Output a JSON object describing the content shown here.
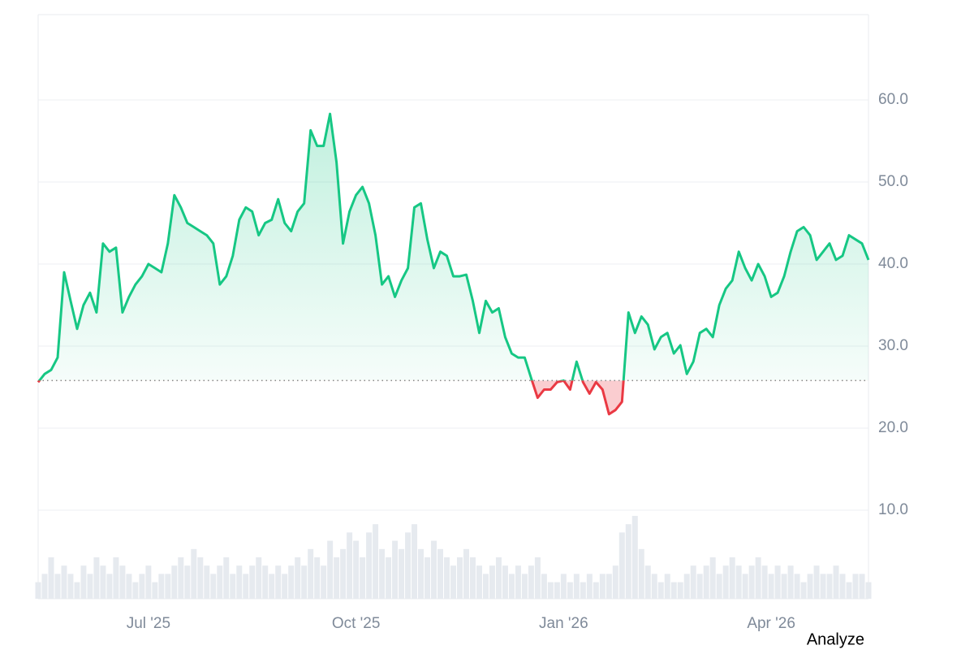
{
  "chart_data": {
    "type": "baseline",
    "categories": [
      null,
      null,
      null,
      null,
      null,
      null,
      null,
      null,
      null,
      null,
      null,
      null,
      null,
      null,
      null,
      null,
      null,
      "Jul '25",
      null,
      null,
      null,
      null,
      null,
      null,
      null,
      null,
      null,
      null,
      null,
      null,
      null,
      null,
      null,
      null,
      null,
      null,
      null,
      null,
      null,
      null,
      null,
      null,
      null,
      null,
      null,
      null,
      null,
      null,
      null,
      "Oct '25",
      null,
      null,
      null,
      null,
      null,
      null,
      null,
      null,
      null,
      null,
      null,
      null,
      null,
      null,
      null,
      null,
      null,
      null,
      null,
      null,
      null,
      null,
      null,
      null,
      null,
      null,
      null,
      null,
      null,
      null,
      null,
      "Jan '26",
      null,
      null,
      null,
      null,
      null,
      null,
      null,
      null,
      null,
      null,
      null,
      null,
      null,
      null,
      null,
      null,
      null,
      null,
      null,
      null,
      null,
      null,
      null,
      null,
      null,
      null,
      null,
      null,
      null,
      null,
      null,
      "Apr '26",
      null,
      null,
      null,
      null,
      null,
      null,
      null,
      null,
      null,
      null,
      null,
      null,
      null,
      null,
      null
    ],
    "values": [
      25.6,
      26.6,
      27.1,
      28.6,
      39.0,
      35.5,
      32.1,
      35.0,
      36.5,
      34.1,
      42.5,
      41.5,
      42.0,
      34.1,
      36.0,
      37.5,
      38.5,
      40.0,
      39.5,
      39.0,
      42.5,
      48.4,
      46.9,
      45.0,
      44.5,
      44.0,
      43.5,
      42.5,
      37.5,
      38.5,
      41.0,
      45.4,
      46.9,
      46.4,
      43.5,
      45.0,
      45.4,
      47.9,
      45.0,
      44.0,
      46.4,
      47.4,
      56.3,
      54.4,
      54.4,
      58.3,
      52.4,
      42.5,
      46.4,
      48.4,
      49.4,
      47.4,
      43.5,
      37.5,
      38.5,
      36.0,
      38.0,
      39.5,
      46.9,
      47.4,
      43.0,
      39.5,
      41.5,
      41.0,
      38.5,
      38.5,
      38.7,
      35.5,
      31.6,
      35.5,
      34.1,
      34.6,
      31.1,
      29.1,
      28.6,
      28.6,
      26.1,
      23.7,
      24.7,
      24.7,
      25.6,
      25.8,
      24.7,
      28.1,
      25.6,
      24.2,
      25.6,
      24.7,
      21.7,
      22.2,
      23.2,
      34.1,
      31.6,
      33.6,
      32.6,
      29.6,
      31.1,
      31.6,
      29.1,
      30.1,
      26.6,
      28.1,
      31.6,
      32.1,
      31.1,
      35.0,
      37.0,
      38.0,
      41.5,
      39.5,
      38.0,
      40.0,
      38.5,
      36.0,
      36.5,
      38.5,
      41.5,
      44.0,
      44.5,
      43.5,
      40.5,
      41.5,
      42.5,
      40.5,
      41.0,
      43.5,
      43.0,
      42.5,
      40.5
    ],
    "volume": [
      2,
      3,
      5,
      3,
      4,
      3,
      2,
      4,
      3,
      5,
      4,
      3,
      5,
      4,
      3,
      2,
      3,
      4,
      2,
      3,
      3,
      4,
      5,
      4,
      6,
      5,
      4,
      3,
      4,
      5,
      3,
      4,
      3,
      4,
      5,
      4,
      3,
      4,
      3,
      4,
      5,
      4,
      6,
      5,
      4,
      7,
      5,
      6,
      8,
      7,
      5,
      8,
      9,
      6,
      5,
      7,
      6,
      8,
      9,
      6,
      5,
      7,
      6,
      5,
      4,
      5,
      6,
      5,
      4,
      3,
      4,
      5,
      4,
      3,
      4,
      3,
      4,
      5,
      3,
      2,
      2,
      3,
      2,
      3,
      2,
      3,
      2,
      3,
      3,
      4,
      8,
      9,
      10,
      6,
      4,
      3,
      2,
      3,
      2,
      2,
      3,
      4,
      3,
      4,
      5,
      3,
      4,
      5,
      4,
      3,
      4,
      5,
      4,
      3,
      4,
      3,
      4,
      3,
      2,
      3,
      4,
      3,
      3,
      4,
      3,
      2,
      3,
      3,
      2
    ],
    "baseline": 25.8,
    "up_color": "#16c784",
    "down_color": "#ea3943",
    "volume_color": "#e6eaef",
    "ylim": [
      -0.8,
      70.4
    ],
    "yticks": [
      {
        "value": 10,
        "label": "10.0"
      },
      {
        "value": 20,
        "label": "20.0"
      },
      {
        "value": 30,
        "label": "30.0"
      },
      {
        "value": 40,
        "label": "40.0"
      },
      {
        "value": 50,
        "label": "50.0"
      },
      {
        "value": 60,
        "label": "60.0"
      }
    ],
    "grid": true
  },
  "button": "Analyze"
}
